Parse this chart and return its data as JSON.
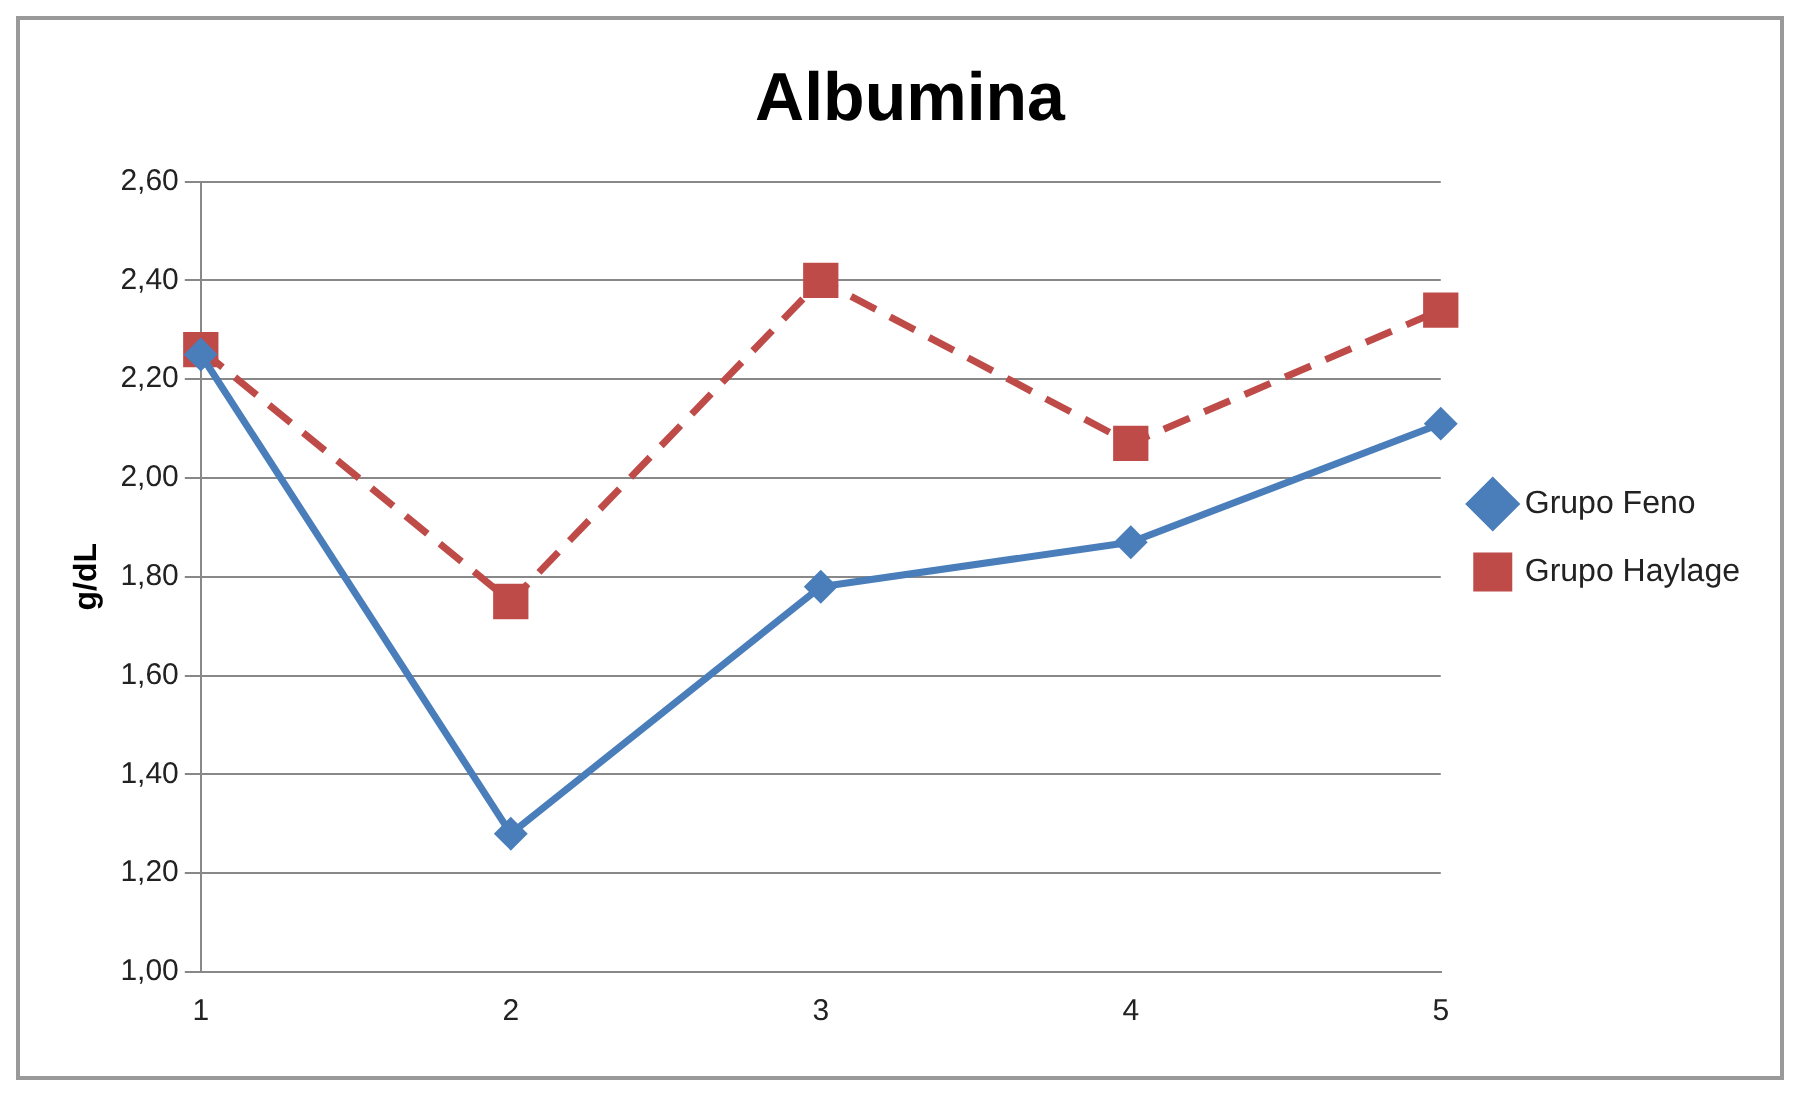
{
  "chart_data": {
    "type": "line",
    "title": "Albumina",
    "ylabel": "g/dL",
    "categories": [
      "1",
      "2",
      "3",
      "4",
      "5"
    ],
    "series": [
      {
        "name": "Grupo Feno",
        "color": "#4a7ebb",
        "marker": "diamond",
        "line_style": "solid",
        "values": [
          2.25,
          1.28,
          1.78,
          1.87,
          2.11
        ]
      },
      {
        "name": "Grupo Haylage",
        "color": "#be4b48",
        "marker": "square",
        "line_style": "dashed",
        "values": [
          2.26,
          1.75,
          2.4,
          2.07,
          2.34
        ]
      }
    ],
    "ylim": [
      1.0,
      2.6
    ],
    "yticks": [
      {
        "value": 1.0,
        "label": "1,00"
      },
      {
        "value": 1.2,
        "label": "1,20"
      },
      {
        "value": 1.4,
        "label": "1,40"
      },
      {
        "value": 1.6,
        "label": "1,60"
      },
      {
        "value": 1.8,
        "label": "1,80"
      },
      {
        "value": 2.0,
        "label": "2,00"
      },
      {
        "value": 2.2,
        "label": "2,20"
      },
      {
        "value": 2.4,
        "label": "2,40"
      },
      {
        "value": 2.6,
        "label": "2,60"
      }
    ],
    "grid": "y",
    "legend": "right"
  }
}
